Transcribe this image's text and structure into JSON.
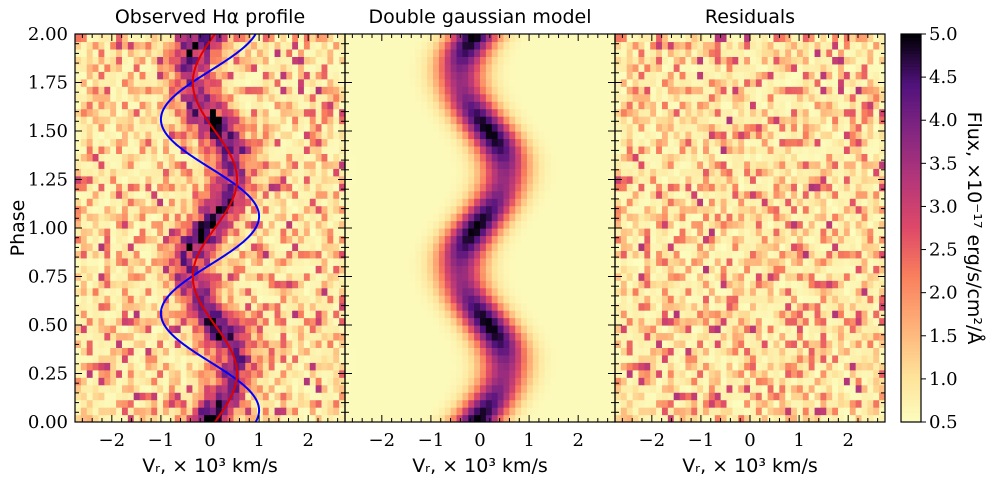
{
  "chart_data": {
    "type": "heatmap",
    "colormap": "magma_r",
    "panels": [
      {
        "title": "Observed Hα profile",
        "kind": "observed"
      },
      {
        "title": "Double gaussian model",
        "kind": "model"
      },
      {
        "title": "Residuals",
        "kind": "residuals"
      }
    ],
    "xlabel": "Vᵣ, × 10³ km/s",
    "ylabel": "Phase",
    "xlim": [
      -2.75,
      2.75
    ],
    "ylim": [
      0.0,
      2.0
    ],
    "x_ticks": [
      "−2",
      "−1",
      "0",
      "1",
      "2"
    ],
    "x_tick_values": [
      -2,
      -1,
      0,
      1,
      2
    ],
    "y_ticks": [
      "0.00",
      "0.25",
      "0.50",
      "0.75",
      "1.00",
      "1.25",
      "1.50",
      "1.75",
      "2.00"
    ],
    "y_tick_values": [
      0.0,
      0.25,
      0.5,
      0.75,
      1.0,
      1.25,
      1.5,
      1.75,
      2.0
    ],
    "colorbar": {
      "label": "Flux, ×10⁻¹⁷ erg/s/cm²/Å",
      "range": [
        0.5,
        5.0
      ],
      "ticks": [
        "0.5",
        "1.0",
        "1.5",
        "2.0",
        "2.5",
        "3.0",
        "3.5",
        "4.0",
        "4.5",
        "5.0"
      ],
      "tick_values": [
        0.5,
        1.0,
        1.5,
        2.0,
        2.5,
        3.0,
        3.5,
        4.0,
        4.5,
        5.0
      ]
    },
    "overlay_curves": [
      {
        "name": "blue sinusoid",
        "color": "#0000ff",
        "amplitude_kms": 1000,
        "offset_kms": 0,
        "max_phase": 0.06
      },
      {
        "name": "red sinusoid",
        "color": "#e00000",
        "amplitude_kms": 450,
        "offset_kms": 100,
        "max_phase": 0.25
      }
    ],
    "model": {
      "amplitude_kms": 450,
      "offset_kms": 50,
      "width_kms": 350,
      "peak_flux": 5.0,
      "background_flux": 0.55
    }
  }
}
